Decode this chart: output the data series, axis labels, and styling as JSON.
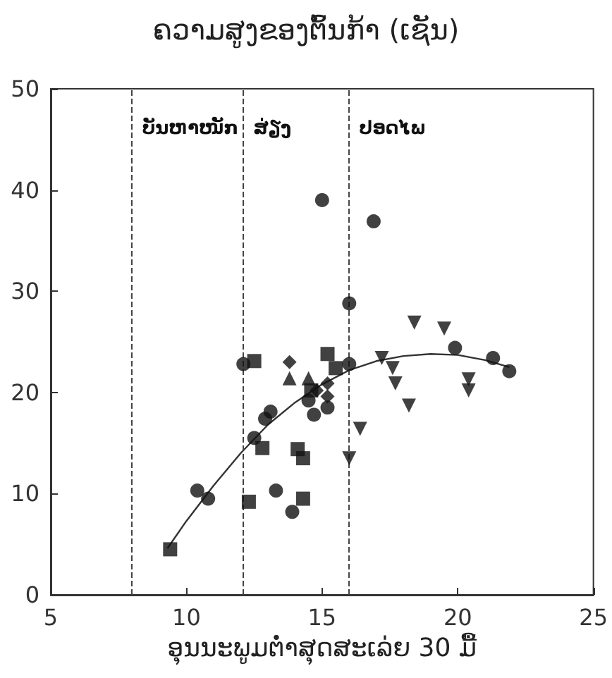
{
  "chart_data": {
    "type": "scatter",
    "title": "ຄວາມສູງຂອງຕົ້ນກ້າ (ເຊັນ)",
    "xlabel": "ອຸນນະພູມຕ່ຳສຸດສະເລ່ຍ 30 ມື້",
    "xlim": [
      5,
      25
    ],
    "xticks": [
      5,
      10,
      15,
      20,
      25
    ],
    "ylim": [
      0,
      50
    ],
    "yticks": [
      0,
      10,
      20,
      30,
      40,
      50
    ],
    "series": [
      {
        "color": "#111111",
        "marker": "circle",
        "x": [
          15.0,
          16.9,
          16.0,
          19.9,
          21.3,
          21.9,
          16.0,
          12.1,
          12.9,
          13.1,
          14.5,
          14.7,
          15.2,
          10.4,
          10.8,
          13.3,
          13.9,
          12.5
        ],
        "values": [
          39.0,
          36.9,
          28.8,
          24.4,
          23.4,
          22.1,
          22.8,
          22.8,
          17.4,
          18.1,
          19.2,
          17.8,
          18.5,
          10.3,
          9.5,
          10.3,
          8.2,
          15.5
        ]
      },
      {
        "color": "#111111",
        "marker": "square",
        "x": [
          12.5,
          15.2,
          15.5,
          14.6,
          9.4,
          12.3,
          12.8,
          14.1,
          14.3,
          14.3
        ],
        "values": [
          23.1,
          23.8,
          22.4,
          20.2,
          4.5,
          9.2,
          14.5,
          14.4,
          13.5,
          9.5
        ]
      },
      {
        "color": "#111111",
        "marker": "diamond",
        "x": [
          13.8,
          15.2,
          15.2,
          14.8
        ],
        "values": [
          23.0,
          20.9,
          19.6,
          20.2
        ]
      },
      {
        "color": "#111111",
        "marker": "triangle",
        "x": [
          13.8,
          14.5
        ],
        "values": [
          21.4,
          21.4
        ]
      },
      {
        "color": "#111111",
        "marker": "triangle-down",
        "x": [
          18.4,
          19.5,
          17.2,
          17.6,
          17.7,
          18.2,
          20.4,
          20.4,
          16.4,
          16.0
        ],
        "values": [
          26.9,
          26.3,
          23.4,
          22.4,
          20.9,
          18.7,
          21.3,
          20.2,
          16.4,
          13.5
        ]
      },
      {
        "type": "line",
        "color": "#333333",
        "marker": "none",
        "line_style": "solid",
        "x": [
          9.3,
          10,
          11,
          12,
          13,
          14,
          15,
          16,
          17,
          18,
          19,
          20,
          21,
          21.9
        ],
        "values": [
          4.6,
          7.3,
          10.8,
          14,
          16.8,
          19,
          20.8,
          22.2,
          23.1,
          23.6,
          23.8,
          23.7,
          23.2,
          22.5
        ]
      }
    ],
    "ref_lines": [
      {
        "axis": "x",
        "value": 8,
        "label": "ບັນຫາໜັກ",
        "color": "#444444",
        "line_style": "dashed"
      },
      {
        "axis": "x",
        "value": 12.1,
        "label": "ສ່ຽງ",
        "color": "#444444",
        "line_style": "dashed"
      },
      {
        "axis": "x",
        "value": 16,
        "label": "ປອດໄພ",
        "color": "#444444",
        "line_style": "dashed"
      }
    ]
  }
}
